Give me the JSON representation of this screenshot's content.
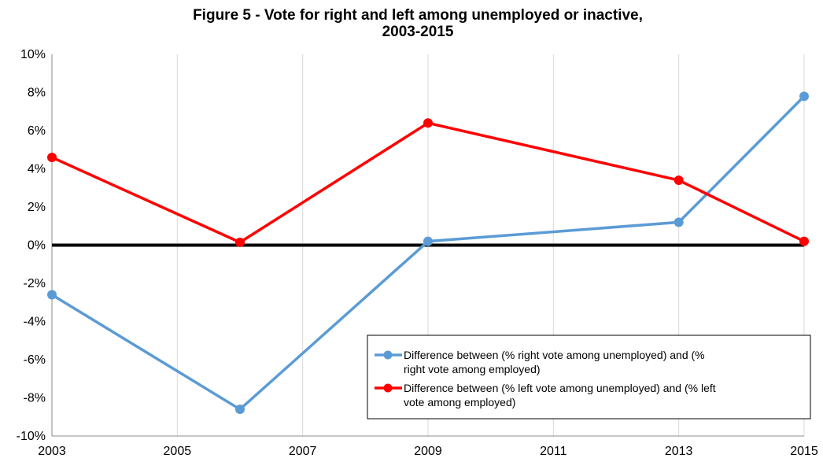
{
  "chart_data": {
    "type": "line",
    "title_lines": [
      "Figure 5 - Vote for right and left among unemployed or inactive,",
      "2003-2015"
    ],
    "xlabel": "",
    "ylabel": "",
    "xlim": [
      2003,
      2015
    ],
    "ylim": [
      -10,
      10
    ],
    "x_ticks": [
      2003,
      2005,
      2007,
      2009,
      2011,
      2013,
      2015
    ],
    "y_ticks": [
      -10,
      -8,
      -6,
      -4,
      -2,
      0,
      2,
      4,
      6,
      8,
      10
    ],
    "y_tick_labels": [
      "-10%",
      "-8%",
      "-6%",
      "-4%",
      "-2%",
      "0%",
      "2%",
      "4%",
      "6%",
      "8%",
      "10%"
    ],
    "grid": {
      "horizontal": false,
      "vertical": true
    },
    "zero_line": true,
    "legend_position": "bottom-right",
    "series": [
      {
        "name_lines": [
          "Difference between (% right vote among unemployed) and (%",
          "right vote among employed)"
        ],
        "color": "#5B9BD5",
        "x": [
          2003,
          2006,
          2009,
          2013,
          2015
        ],
        "y": [
          -2.6,
          -8.6,
          0.2,
          1.2,
          7.8
        ]
      },
      {
        "name_lines": [
          "Difference between (% left vote among unemployed) and (% left",
          "vote among employed)"
        ],
        "color": "#FF0000",
        "x": [
          2003,
          2006,
          2009,
          2013,
          2015
        ],
        "y": [
          4.6,
          0.15,
          6.4,
          3.4,
          0.2
        ]
      }
    ]
  }
}
